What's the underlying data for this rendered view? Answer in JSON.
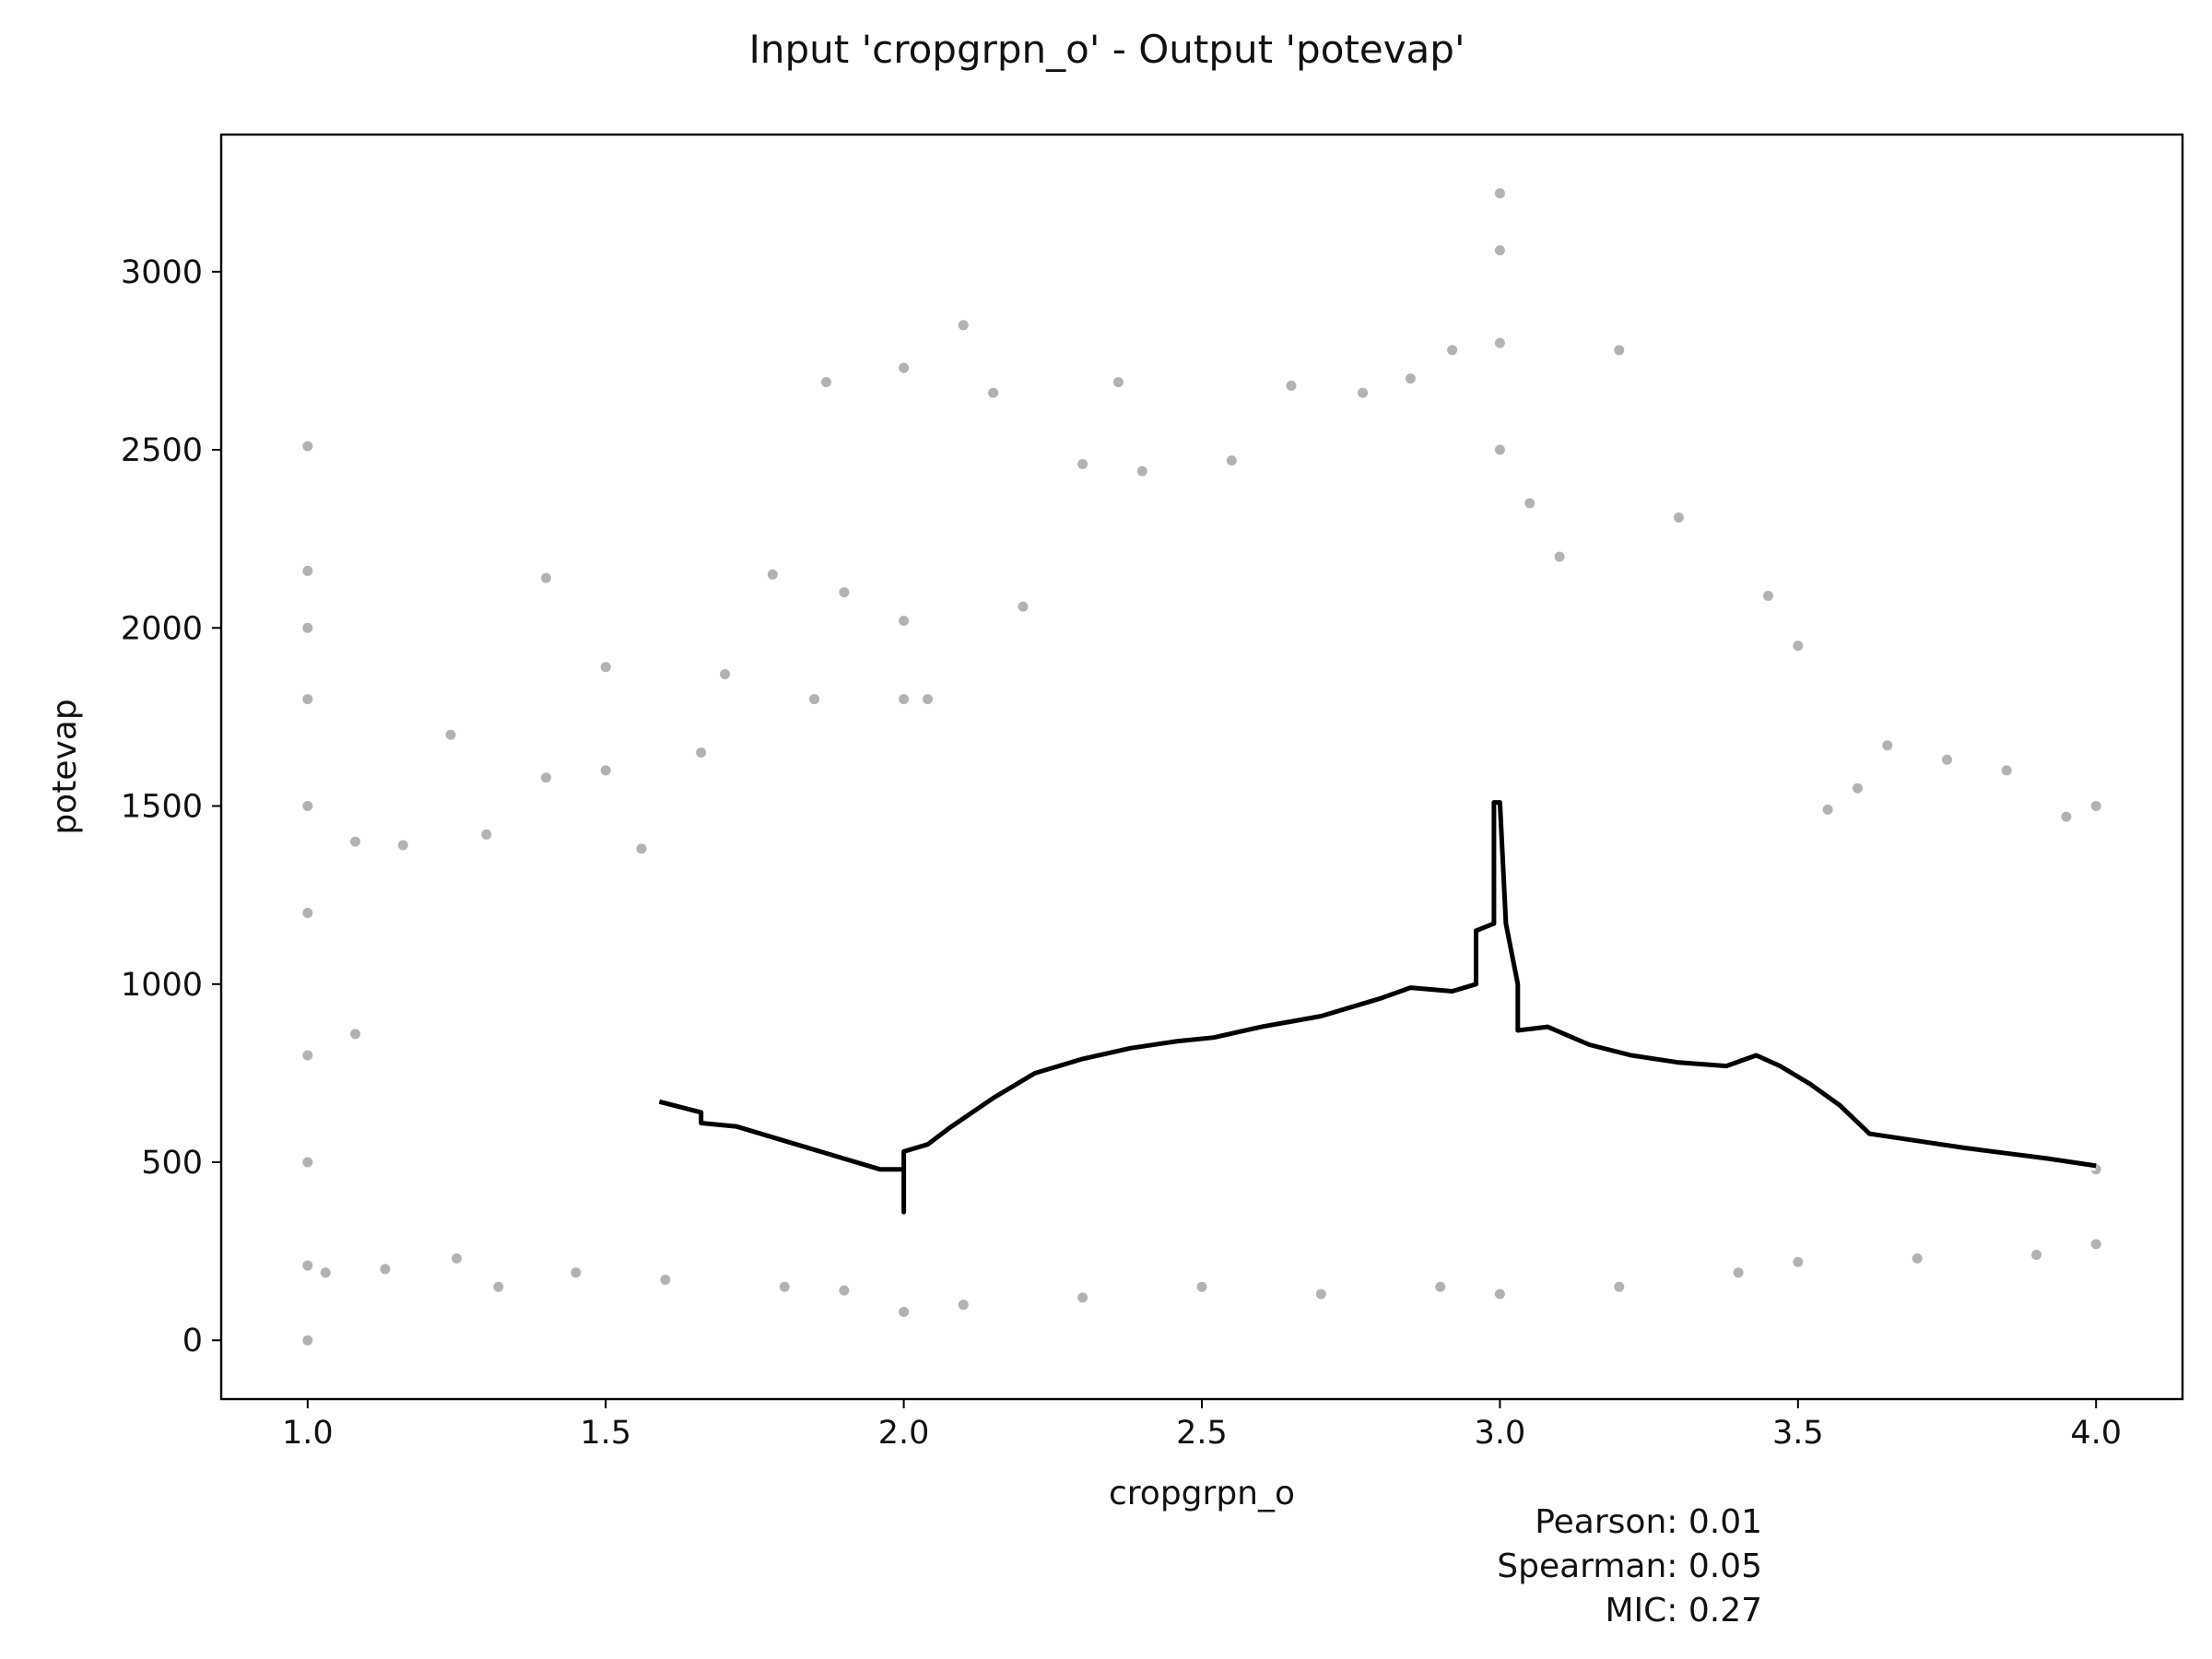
{
  "chart_data": {
    "type": "scatter",
    "title": "Input 'cropgrpn_o' - Output 'potevap'",
    "xlabel": "cropgrpn_o",
    "ylabel": "potevap",
    "xlim": [
      0.855,
      4.145
    ],
    "ylim": [
      -165,
      3385
    ],
    "xticks": [
      1.0,
      1.5,
      2.0,
      2.5,
      3.0,
      3.5,
      4.0
    ],
    "xtick_labels": [
      "1.0",
      "1.5",
      "2.0",
      "2.5",
      "3.0",
      "3.5",
      "4.0"
    ],
    "yticks": [
      0,
      500,
      1000,
      1500,
      2000,
      2500,
      3000
    ],
    "ytick_labels": [
      "0",
      "500",
      "1000",
      "1500",
      "2000",
      "2500",
      "3000"
    ],
    "grid": false,
    "legend": "none",
    "colors": {
      "points": "#000000",
      "trend_line": "#000000",
      "trend_halo": "#ffffff"
    },
    "series": [
      {
        "kind": "scatter",
        "note_values": "representative points sampled from the dense point cloud",
        "points": [
          [
            1.0,
            0
          ],
          [
            1.0,
            210
          ],
          [
            1.0,
            500
          ],
          [
            1.0,
            800
          ],
          [
            1.0,
            1200
          ],
          [
            1.0,
            1500
          ],
          [
            1.0,
            1800
          ],
          [
            1.0,
            2000
          ],
          [
            1.0,
            2160
          ],
          [
            1.0,
            2510
          ],
          [
            1.08,
            1400
          ],
          [
            1.08,
            860
          ],
          [
            1.16,
            1390
          ],
          [
            1.24,
            1700
          ],
          [
            1.3,
            1420
          ],
          [
            1.4,
            2140
          ],
          [
            1.4,
            1580
          ],
          [
            1.5,
            1890
          ],
          [
            1.5,
            1600
          ],
          [
            1.56,
            1380
          ],
          [
            1.66,
            1650
          ],
          [
            1.7,
            1870
          ],
          [
            1.78,
            2150
          ],
          [
            1.87,
            2690
          ],
          [
            1.85,
            1800
          ],
          [
            1.9,
            2100
          ],
          [
            2.0,
            2730
          ],
          [
            2.0,
            2020
          ],
          [
            2.0,
            1800
          ],
          [
            2.0,
            80
          ],
          [
            2.04,
            1800
          ],
          [
            2.1,
            2850
          ],
          [
            2.15,
            2660
          ],
          [
            2.2,
            2060
          ],
          [
            2.3,
            2460
          ],
          [
            2.36,
            2690
          ],
          [
            2.4,
            2440
          ],
          [
            2.55,
            2470
          ],
          [
            2.65,
            2680
          ],
          [
            2.77,
            2660
          ],
          [
            2.85,
            2700
          ],
          [
            2.92,
            2780
          ],
          [
            3.0,
            3220
          ],
          [
            3.0,
            3060
          ],
          [
            3.0,
            2800
          ],
          [
            3.0,
            2500
          ],
          [
            3.05,
            2350
          ],
          [
            3.1,
            2200
          ],
          [
            3.2,
            2780
          ],
          [
            3.3,
            2310
          ],
          [
            3.45,
            2090
          ],
          [
            3.5,
            1950
          ],
          [
            3.55,
            1490
          ],
          [
            3.6,
            1550
          ],
          [
            3.65,
            1670
          ],
          [
            3.75,
            1630
          ],
          [
            3.85,
            1600
          ],
          [
            3.95,
            1470
          ],
          [
            4.0,
            1500
          ],
          [
            4.0,
            480
          ],
          [
            4.0,
            270
          ],
          [
            1.03,
            190
          ],
          [
            1.13,
            200
          ],
          [
            1.25,
            230
          ],
          [
            1.32,
            150
          ],
          [
            1.45,
            190
          ],
          [
            1.6,
            170
          ],
          [
            1.8,
            150
          ],
          [
            1.9,
            140
          ],
          [
            2.1,
            100
          ],
          [
            2.3,
            120
          ],
          [
            2.5,
            150
          ],
          [
            2.7,
            130
          ],
          [
            2.9,
            150
          ],
          [
            3.0,
            130
          ],
          [
            3.2,
            150
          ],
          [
            3.4,
            190
          ],
          [
            3.5,
            220
          ],
          [
            3.7,
            230
          ],
          [
            3.9,
            240
          ]
        ]
      },
      {
        "kind": "line",
        "label_shown": "",
        "points": [
          [
            1.59,
            670
          ],
          [
            1.66,
            640
          ],
          [
            1.66,
            610
          ],
          [
            1.72,
            600
          ],
          [
            1.8,
            560
          ],
          [
            1.9,
            510
          ],
          [
            1.96,
            480
          ],
          [
            1.99,
            480
          ],
          [
            2.0,
            480
          ],
          [
            2.0,
            360
          ],
          [
            2.0,
            530
          ],
          [
            2.04,
            550
          ],
          [
            2.08,
            600
          ],
          [
            2.15,
            680
          ],
          [
            2.22,
            750
          ],
          [
            2.3,
            790
          ],
          [
            2.38,
            820
          ],
          [
            2.46,
            840
          ],
          [
            2.52,
            850
          ],
          [
            2.6,
            880
          ],
          [
            2.7,
            910
          ],
          [
            2.8,
            960
          ],
          [
            2.85,
            990
          ],
          [
            2.92,
            980
          ],
          [
            2.96,
            1000
          ],
          [
            2.96,
            1150
          ],
          [
            2.99,
            1170
          ],
          [
            2.99,
            1510
          ],
          [
            3.0,
            1510
          ],
          [
            3.01,
            1170
          ],
          [
            3.03,
            1000
          ],
          [
            3.03,
            870
          ],
          [
            3.08,
            880
          ],
          [
            3.15,
            830
          ],
          [
            3.22,
            800
          ],
          [
            3.3,
            780
          ],
          [
            3.38,
            770
          ],
          [
            3.43,
            800
          ],
          [
            3.47,
            770
          ],
          [
            3.52,
            720
          ],
          [
            3.57,
            660
          ],
          [
            3.62,
            580
          ],
          [
            3.7,
            560
          ],
          [
            3.78,
            540
          ],
          [
            3.85,
            525
          ],
          [
            3.92,
            510
          ],
          [
            4.0,
            490
          ]
        ]
      }
    ],
    "annotations": [
      "Pearson: 0.01",
      "Spearman: 0.05",
      "MIC: 0.27"
    ]
  }
}
